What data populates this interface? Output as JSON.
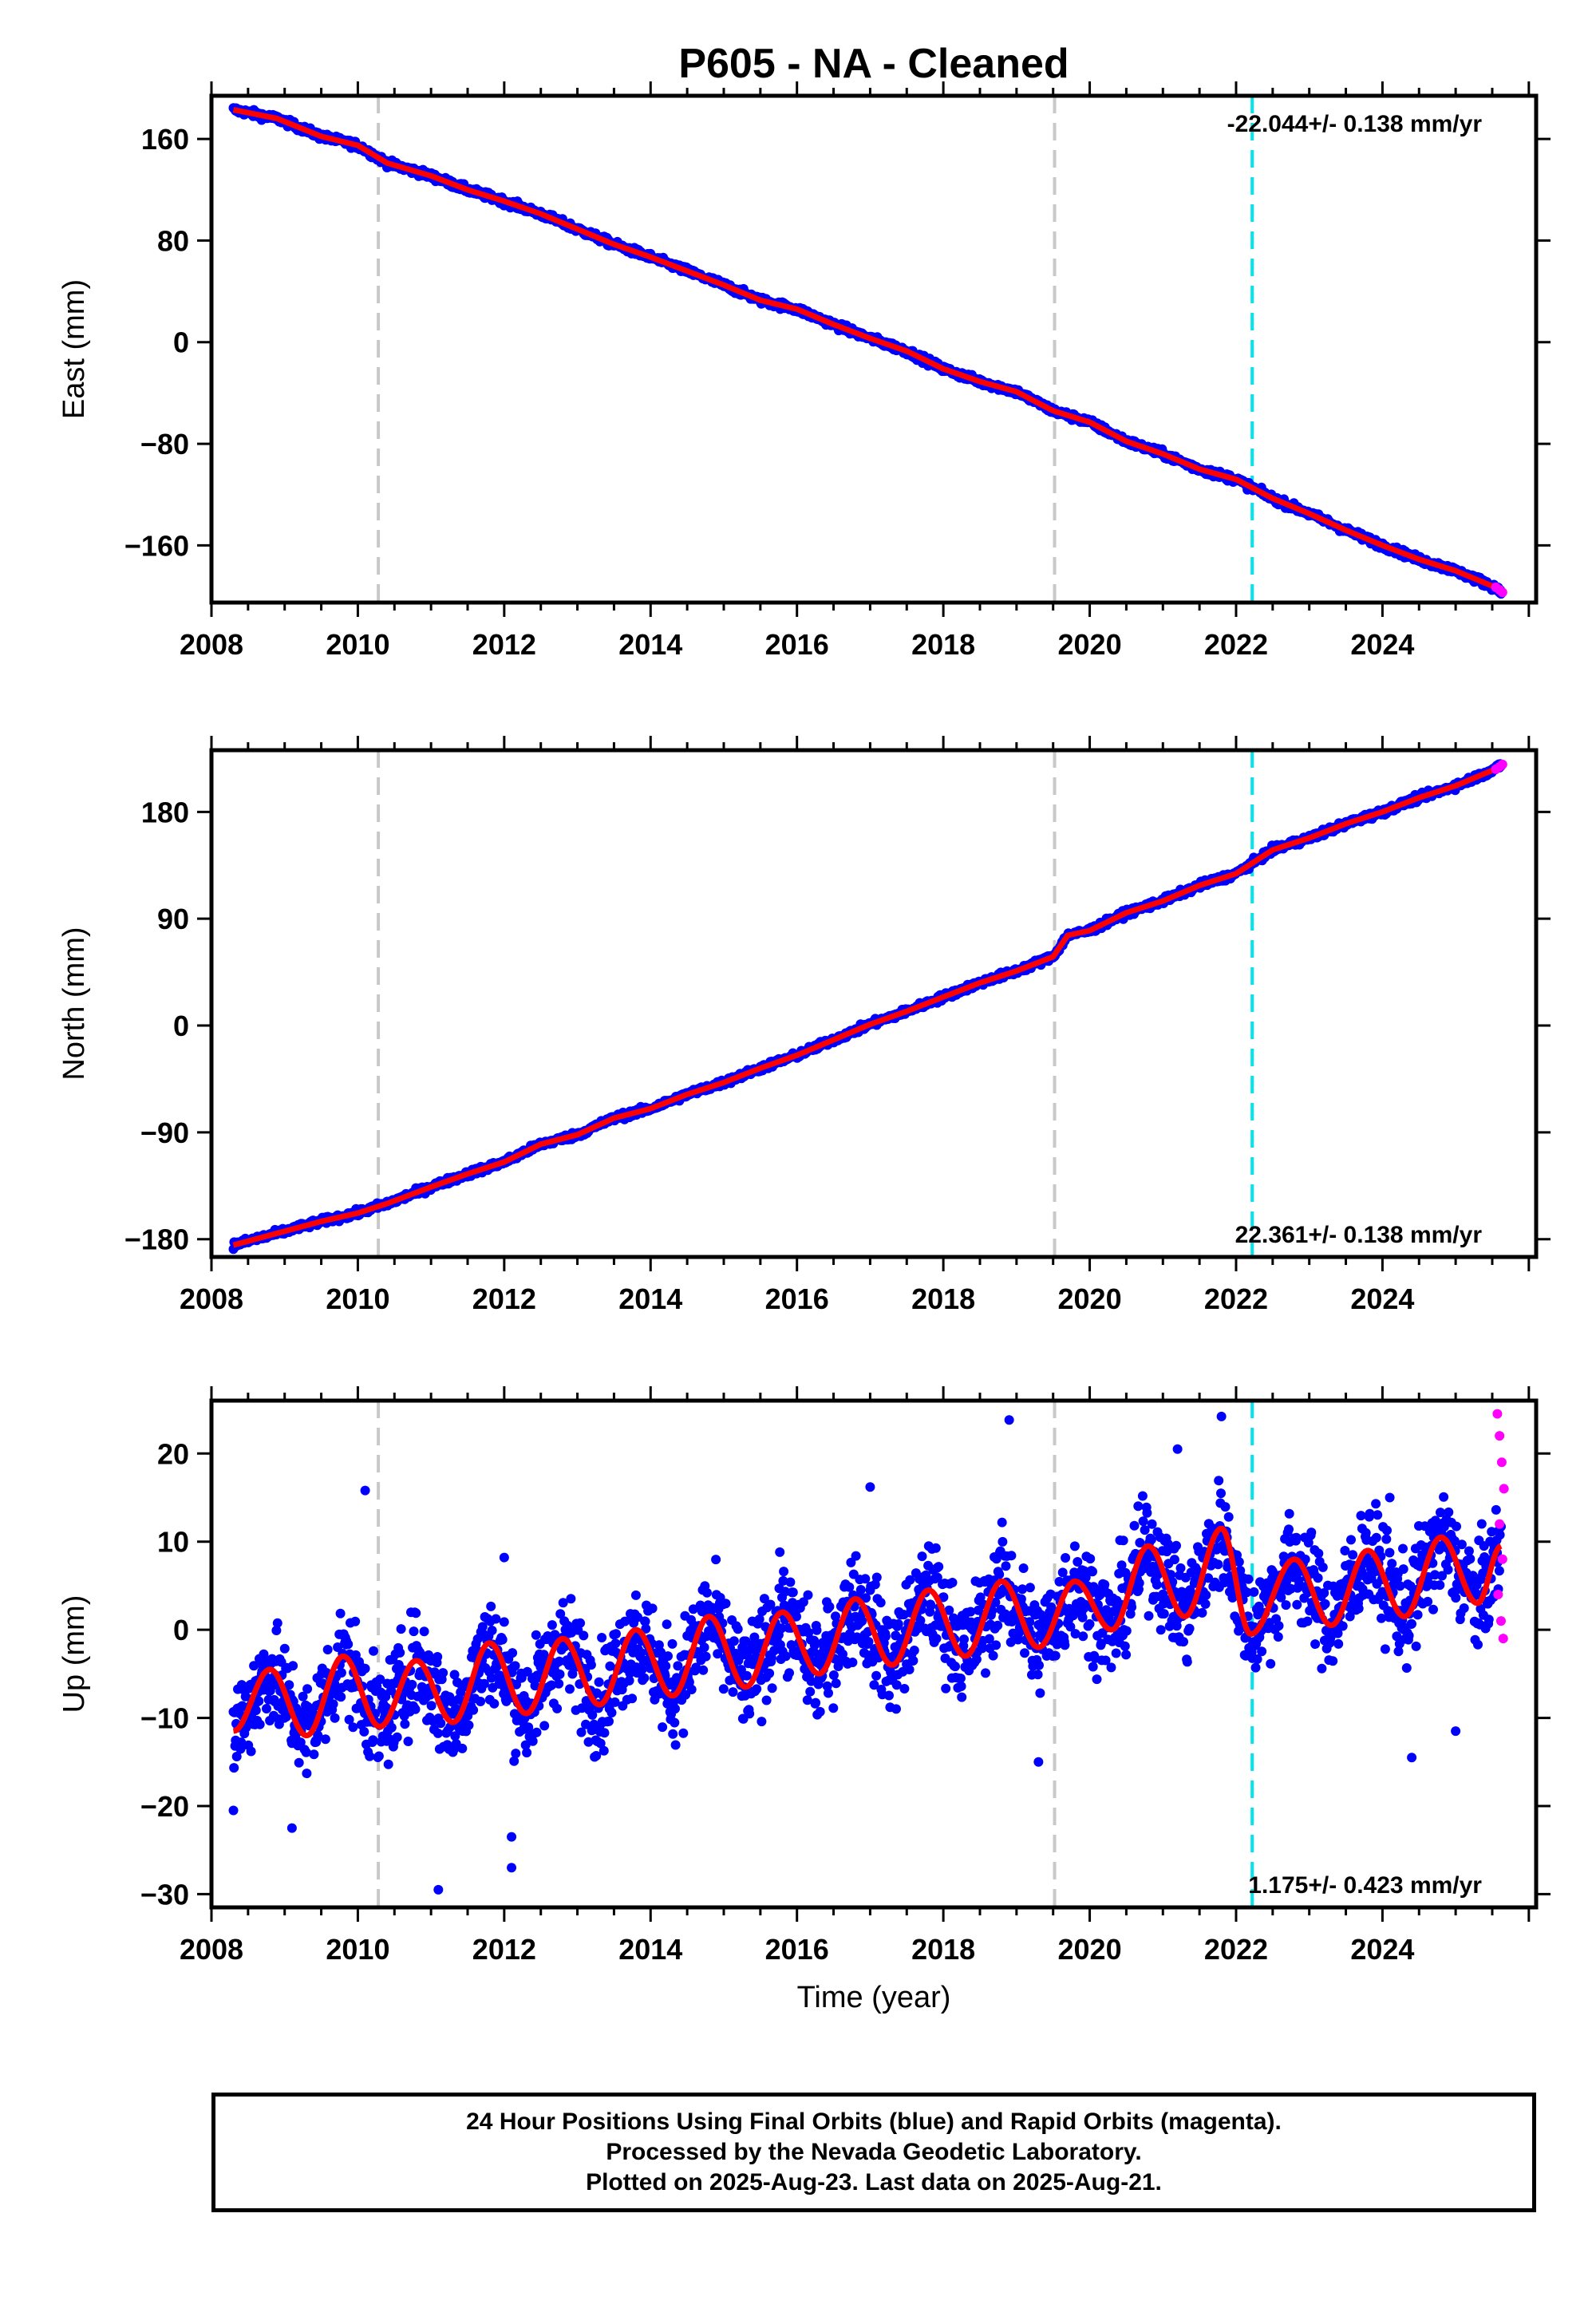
{
  "chart_data": {
    "type": "scatter",
    "title": "P605  - NA - Cleaned",
    "xlabel": "Time (year)",
    "colors": {
      "final_orbits": "#0000ff",
      "rapid_orbits": "#ff00ff",
      "model_fit": "#ff0000",
      "event_line_gray": "#c8c8c8",
      "event_line_cyan": "#00e5ee"
    },
    "event_lines": [
      {
        "x": 2010.28,
        "color": "gray"
      },
      {
        "x": 2019.52,
        "color": "gray"
      },
      {
        "x": 2022.22,
        "color": "cyan"
      }
    ],
    "xlim": [
      2008.0,
      2026.1
    ],
    "xticks": [
      2008,
      2010,
      2012,
      2014,
      2016,
      2018,
      2020,
      2022,
      2024
    ],
    "panels": [
      {
        "name": "east",
        "ylabel": "East (mm)",
        "ylim": [
          -205,
          194
        ],
        "yticks": [
          -160,
          -80,
          0,
          80,
          160
        ],
        "rate_label": "-22.044+/- 0.138 mm/yr",
        "rate_position": "top-right",
        "series": {
          "x": [
            2008.3,
            2008.9,
            2009.5,
            2010.0,
            2010.4,
            2011.0,
            2011.5,
            2012.0,
            2012.5,
            2013.0,
            2013.5,
            2014.0,
            2014.5,
            2015.0,
            2015.5,
            2016.0,
            2016.5,
            2017.0,
            2017.5,
            2018.0,
            2018.5,
            2019.0,
            2019.5,
            2020.0,
            2020.5,
            2021.0,
            2021.5,
            2022.0,
            2022.5,
            2023.0,
            2023.5,
            2024.0,
            2024.5,
            2025.0,
            2025.5,
            2025.62
          ],
          "y": [
            183,
            176,
            162,
            155,
            141,
            131,
            120,
            111,
            101,
            89,
            77,
            67,
            56,
            45,
            33,
            26,
            14,
            3,
            -7,
            -21,
            -31,
            -39,
            -54,
            -63,
            -78,
            -88,
            -100,
            -108,
            -123,
            -135,
            -148,
            -160,
            -171,
            -180,
            -192,
            -196
          ]
        },
        "rapid": {
          "x": [
            2025.55,
            2025.6,
            2025.64
          ],
          "y": [
            -193,
            -195,
            -197
          ]
        }
      },
      {
        "name": "north",
        "ylabel": "North (mm)",
        "ylim": [
          -195,
          232
        ],
        "yticks": [
          -180,
          -90,
          0,
          90,
          180
        ],
        "rate_label": "22.361+/- 0.138 mm/yr",
        "rate_position": "bottom-right",
        "series": {
          "x": [
            2008.3,
            2008.9,
            2009.5,
            2010.0,
            2010.4,
            2011.0,
            2011.5,
            2012.0,
            2012.5,
            2013.0,
            2013.5,
            2014.0,
            2014.5,
            2015.0,
            2015.5,
            2016.0,
            2016.5,
            2017.0,
            2017.5,
            2018.0,
            2018.5,
            2019.0,
            2019.5,
            2019.7,
            2020.0,
            2020.5,
            2021.0,
            2021.5,
            2022.0,
            2022.5,
            2023.0,
            2023.5,
            2024.0,
            2024.5,
            2025.0,
            2025.5,
            2025.62
          ],
          "y": [
            -185,
            -175,
            -165,
            -158,
            -150,
            -136,
            -125,
            -115,
            -100,
            -92,
            -78,
            -70,
            -58,
            -48,
            -36,
            -25,
            -12,
            1,
            12,
            24,
            36,
            46,
            58,
            76,
            80,
            95,
            105,
            118,
            128,
            148,
            158,
            170,
            180,
            192,
            202,
            215,
            219
          ]
        },
        "rapid": {
          "x": [
            2025.55,
            2025.6,
            2025.64
          ],
          "y": [
            216,
            218,
            220
          ]
        }
      },
      {
        "name": "up",
        "ylabel": "Up (mm)",
        "ylim": [
          -31.5,
          26
        ],
        "yticks": [
          -30,
          -20,
          -10,
          0,
          10,
          20
        ],
        "rate_label": "1.175+/- 0.423 mm/yr",
        "rate_position": "bottom-right",
        "series": {
          "x": [
            2008.3,
            2008.8,
            2009.3,
            2009.8,
            2010.3,
            2010.8,
            2011.3,
            2011.8,
            2012.3,
            2012.8,
            2013.3,
            2013.8,
            2014.3,
            2014.8,
            2015.3,
            2015.8,
            2016.3,
            2016.8,
            2017.3,
            2017.8,
            2018.3,
            2018.8,
            2019.3,
            2019.8,
            2020.3,
            2020.8,
            2021.3,
            2021.8,
            2022.2,
            2022.8,
            2023.3,
            2023.8,
            2024.3,
            2024.8,
            2025.3,
            2025.62
          ],
          "y": [
            -11.5,
            -4.5,
            -12,
            -3,
            -11,
            -3.5,
            -10.5,
            -1.5,
            -9.5,
            -1,
            -8.5,
            0,
            -7.5,
            1.5,
            -6.5,
            2,
            -5,
            3.5,
            -4,
            4.5,
            -3,
            5.5,
            -2,
            5.5,
            0,
            9.5,
            1.5,
            11.5,
            -0.5,
            8,
            0.5,
            9,
            1.5,
            10.5,
            3,
            9.5
          ]
        },
        "rapid": {
          "x": [
            2025.57,
            2025.6,
            2025.63,
            2025.66,
            2025.6,
            2025.64,
            2025.58,
            2025.62,
            2025.65
          ],
          "y": [
            24.5,
            22,
            19,
            16,
            12,
            8,
            4,
            1,
            -1
          ]
        }
      }
    ]
  },
  "caption": {
    "line1": "24 Hour Positions Using Final Orbits (blue) and Rapid Orbits (magenta).",
    "line2": "Processed by the Nevada Geodetic Laboratory.",
    "line3": "Plotted on 2025-Aug-23. Last data on 2025-Aug-21."
  }
}
